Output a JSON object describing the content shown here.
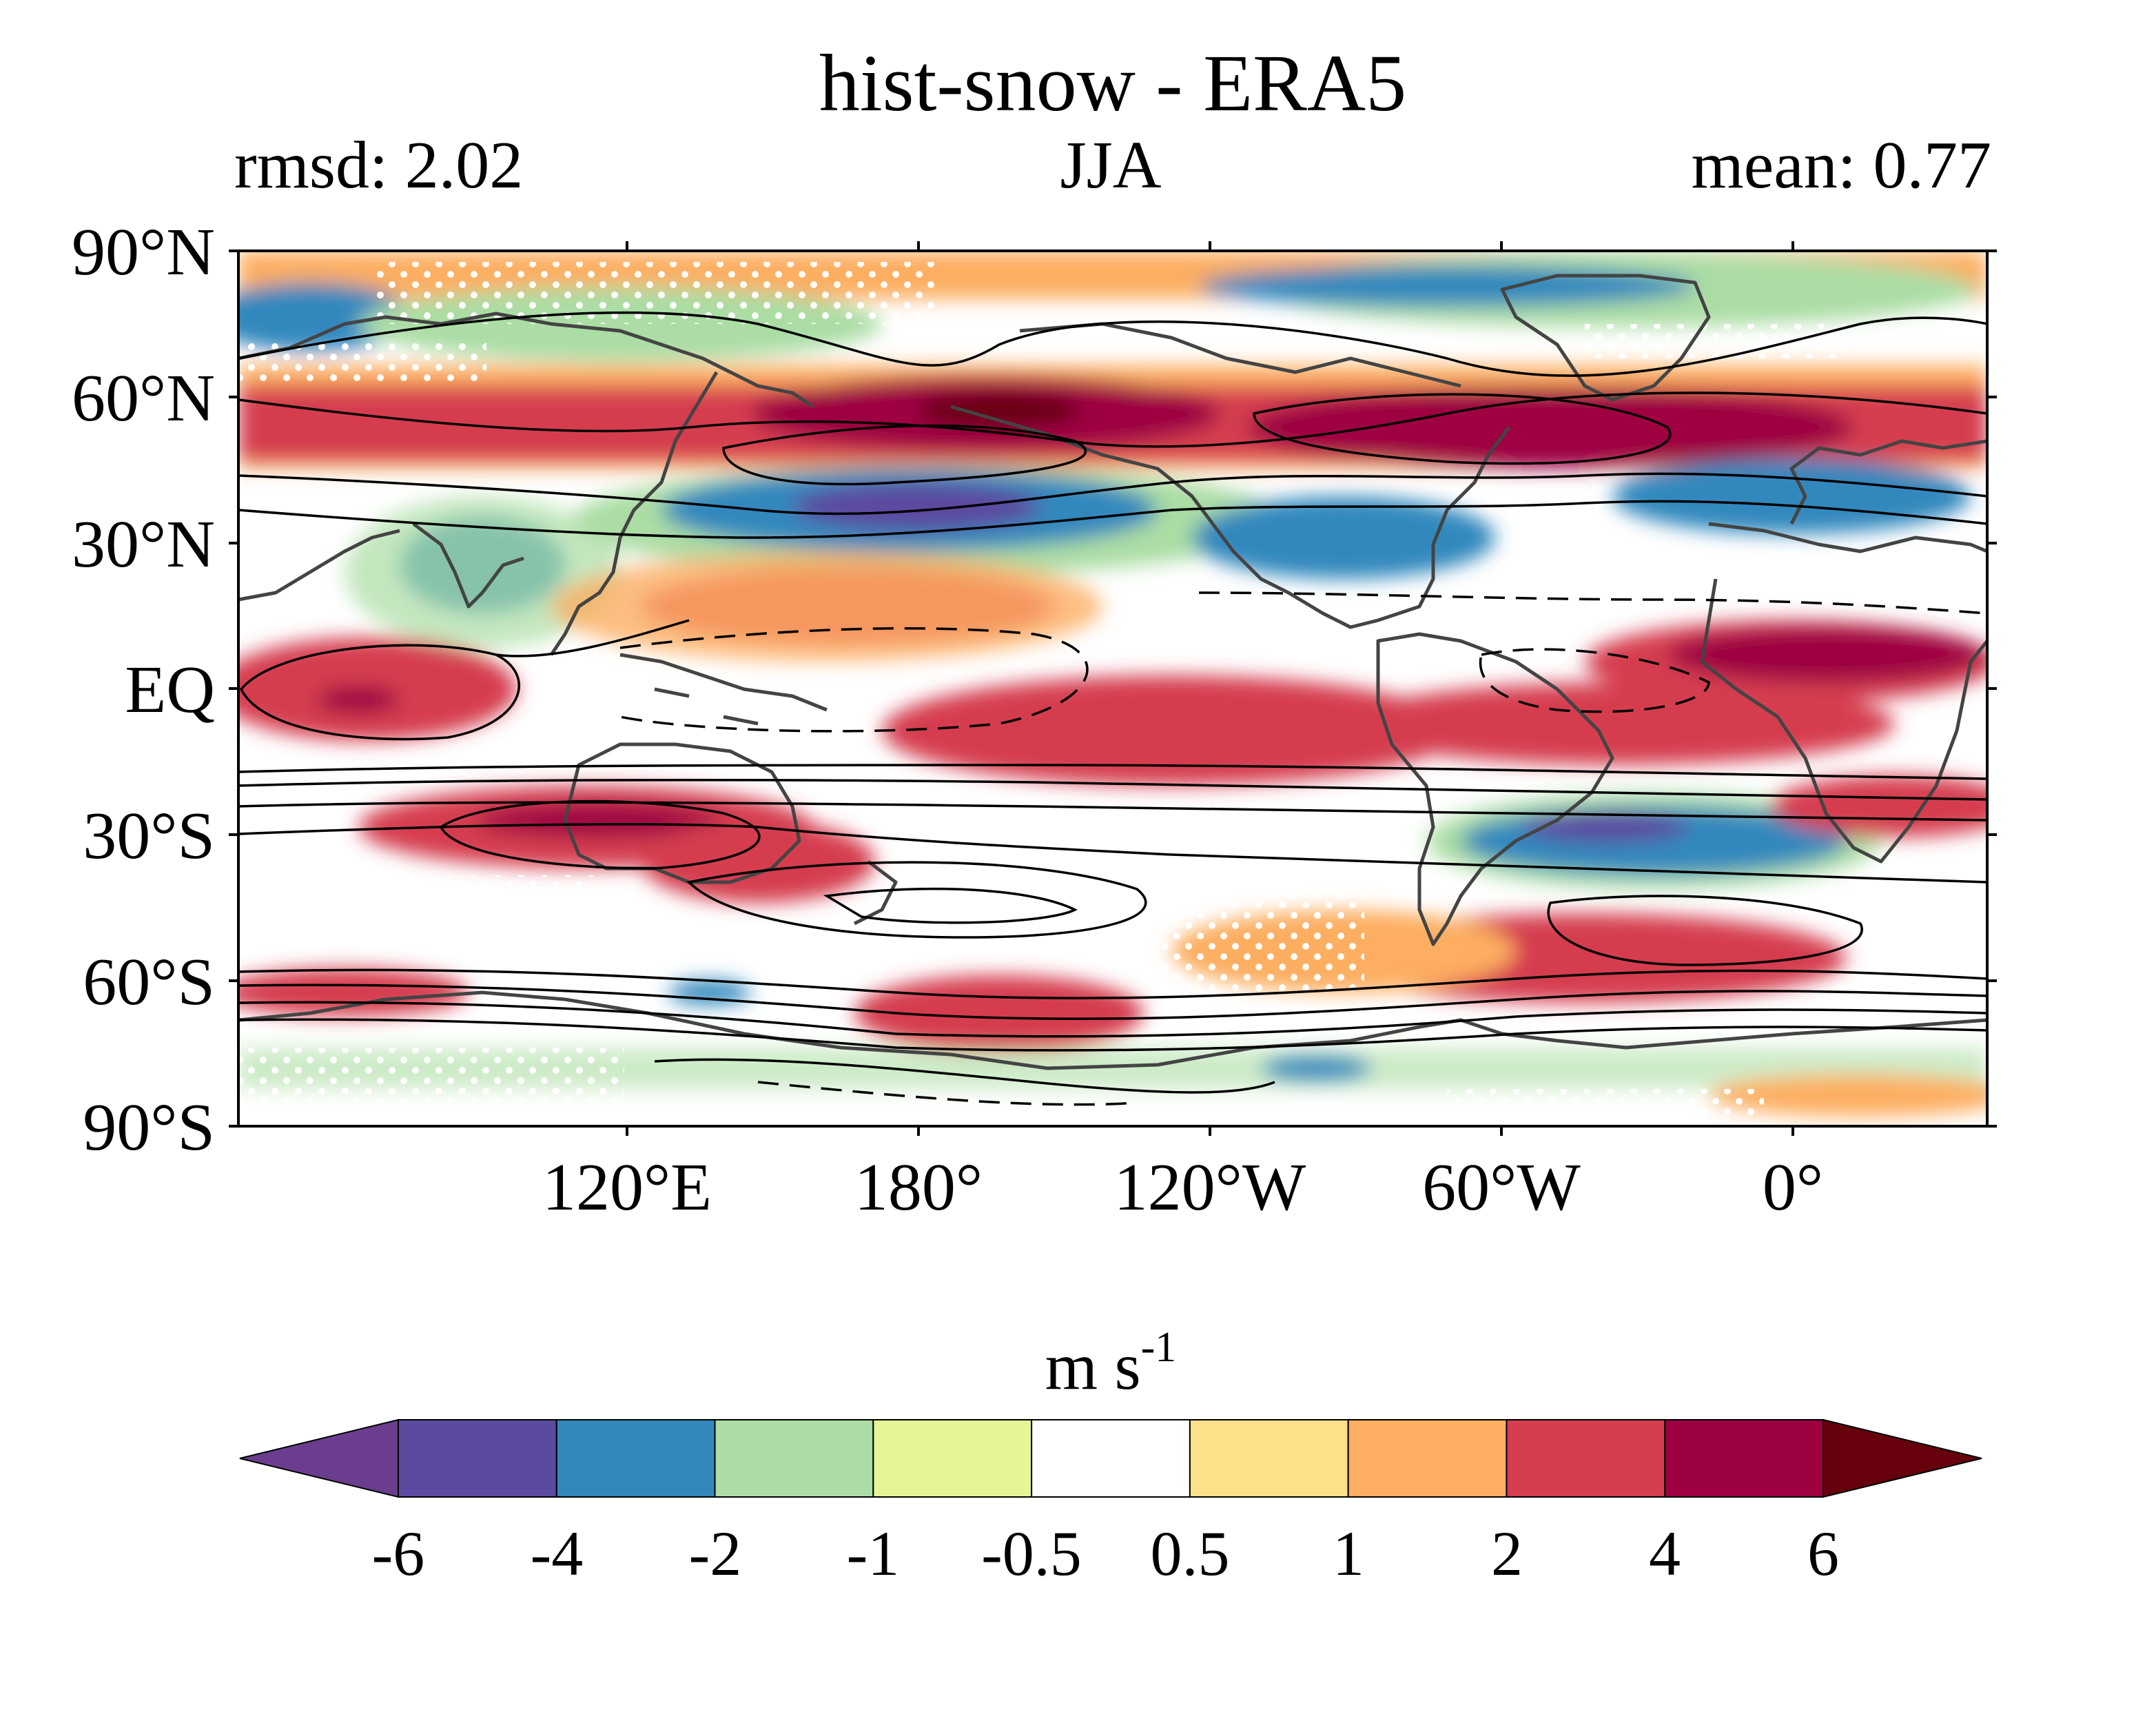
{
  "title": "hist-snow - ERA5",
  "subtitle_left": "rmsd: 2.02",
  "subtitle_center": "JJA",
  "subtitle_right": "mean: 0.77",
  "lat_labels": [
    "90°N",
    "60°N",
    "30°N",
    "EQ",
    "30°S",
    "60°S",
    "90°S"
  ],
  "lon_labels": [
    "120°E",
    "180°",
    "120°W",
    "60°W",
    "0°"
  ],
  "colorbar": {
    "units": "m s",
    "units_exponent": "-1",
    "tick_labels": [
      "-6",
      "-4",
      "-2",
      "-1",
      "-0.5",
      "0.5",
      "1",
      "2",
      "4",
      "6"
    ],
    "colors": [
      "#6a3d8f",
      "#5b4aa0",
      "#3288bd",
      "#abdda4",
      "#e6f598",
      "#ffffff",
      "#fee08b",
      "#fdae61",
      "#d53e4f",
      "#9e0142",
      "#67000d"
    ]
  },
  "map": {
    "lon_range": [
      40,
      400
    ],
    "lat_range": [
      -90,
      90
    ],
    "fill_colors": {
      "darkred": "#9e0142",
      "red": "#d53e4f",
      "orange": "#fdae61",
      "yellow": "#fee08b",
      "white": "#ffffff",
      "lightyellow": "#e6f598",
      "green": "#abdda4",
      "blue": "#3288bd",
      "purple": "#5b4aa0",
      "maroon": "#67000d"
    },
    "coastline_color": "#444444",
    "contour_color": "#000000"
  }
}
